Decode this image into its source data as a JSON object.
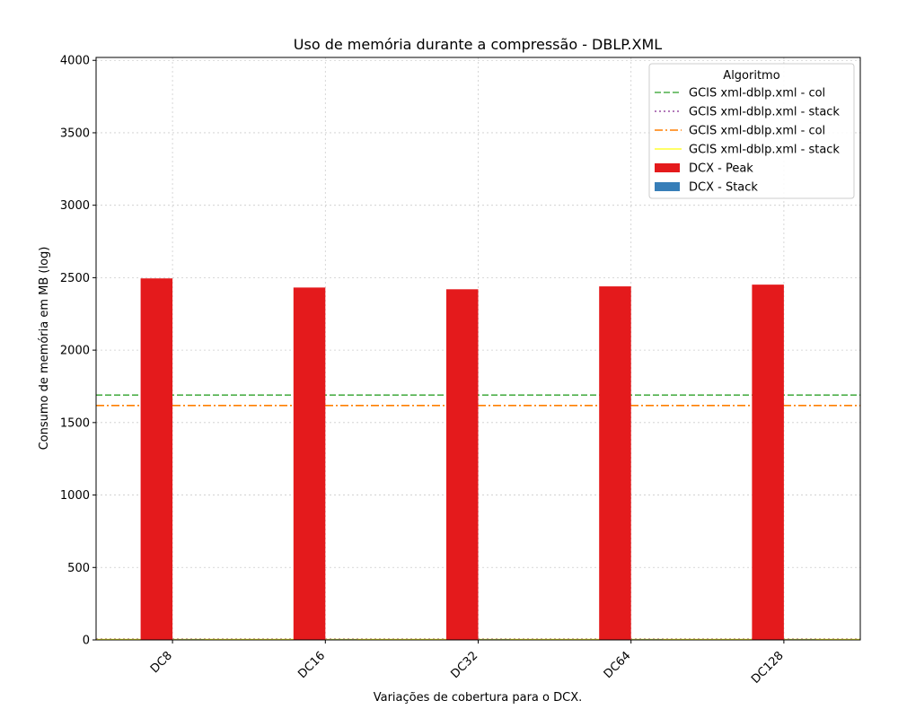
{
  "chart_data": {
    "type": "bar",
    "title": "Uso de memória durante a compressão -  DBLP.XML",
    "xlabel": "Variações de cobertura para o DCX.",
    "ylabel": "Consumo de memória em MB (log)",
    "categories": [
      "DC8",
      "DC16",
      "DC32",
      "DC64",
      "DC128"
    ],
    "ylim": [
      0,
      4020
    ],
    "yticks": [
      "0",
      "500",
      "1000",
      "1500",
      "2000",
      "2500",
      "3000",
      "3500",
      "4000"
    ],
    "grid": true,
    "legend": {
      "title": "Algoritmo",
      "placement": "top-right"
    },
    "series": [
      {
        "name": "DCX - Peak",
        "values": [
          2495,
          2432,
          2420,
          2440,
          2452
        ],
        "color": "#e41a1c"
      },
      {
        "name": "DCX - Stack",
        "values": [
          4,
          4,
          4,
          4,
          4
        ],
        "color": "#377eb8"
      }
    ],
    "reference_lines": [
      {
        "name": "GCIS xml-dblp.xml - col",
        "value": 1690,
        "color": "#4daf4a",
        "style": "dashed"
      },
      {
        "name": "GCIS xml-dblp.xml - stack",
        "value": 6,
        "color": "#984ea3",
        "style": "dotted"
      },
      {
        "name": "GCIS xml-dblp.xml - col",
        "value": 1618,
        "color": "#ff7f00",
        "style": "dashdot"
      },
      {
        "name": "GCIS xml-dblp.xml - stack",
        "value": 3,
        "color": "#ffff33",
        "style": "solid"
      }
    ]
  }
}
